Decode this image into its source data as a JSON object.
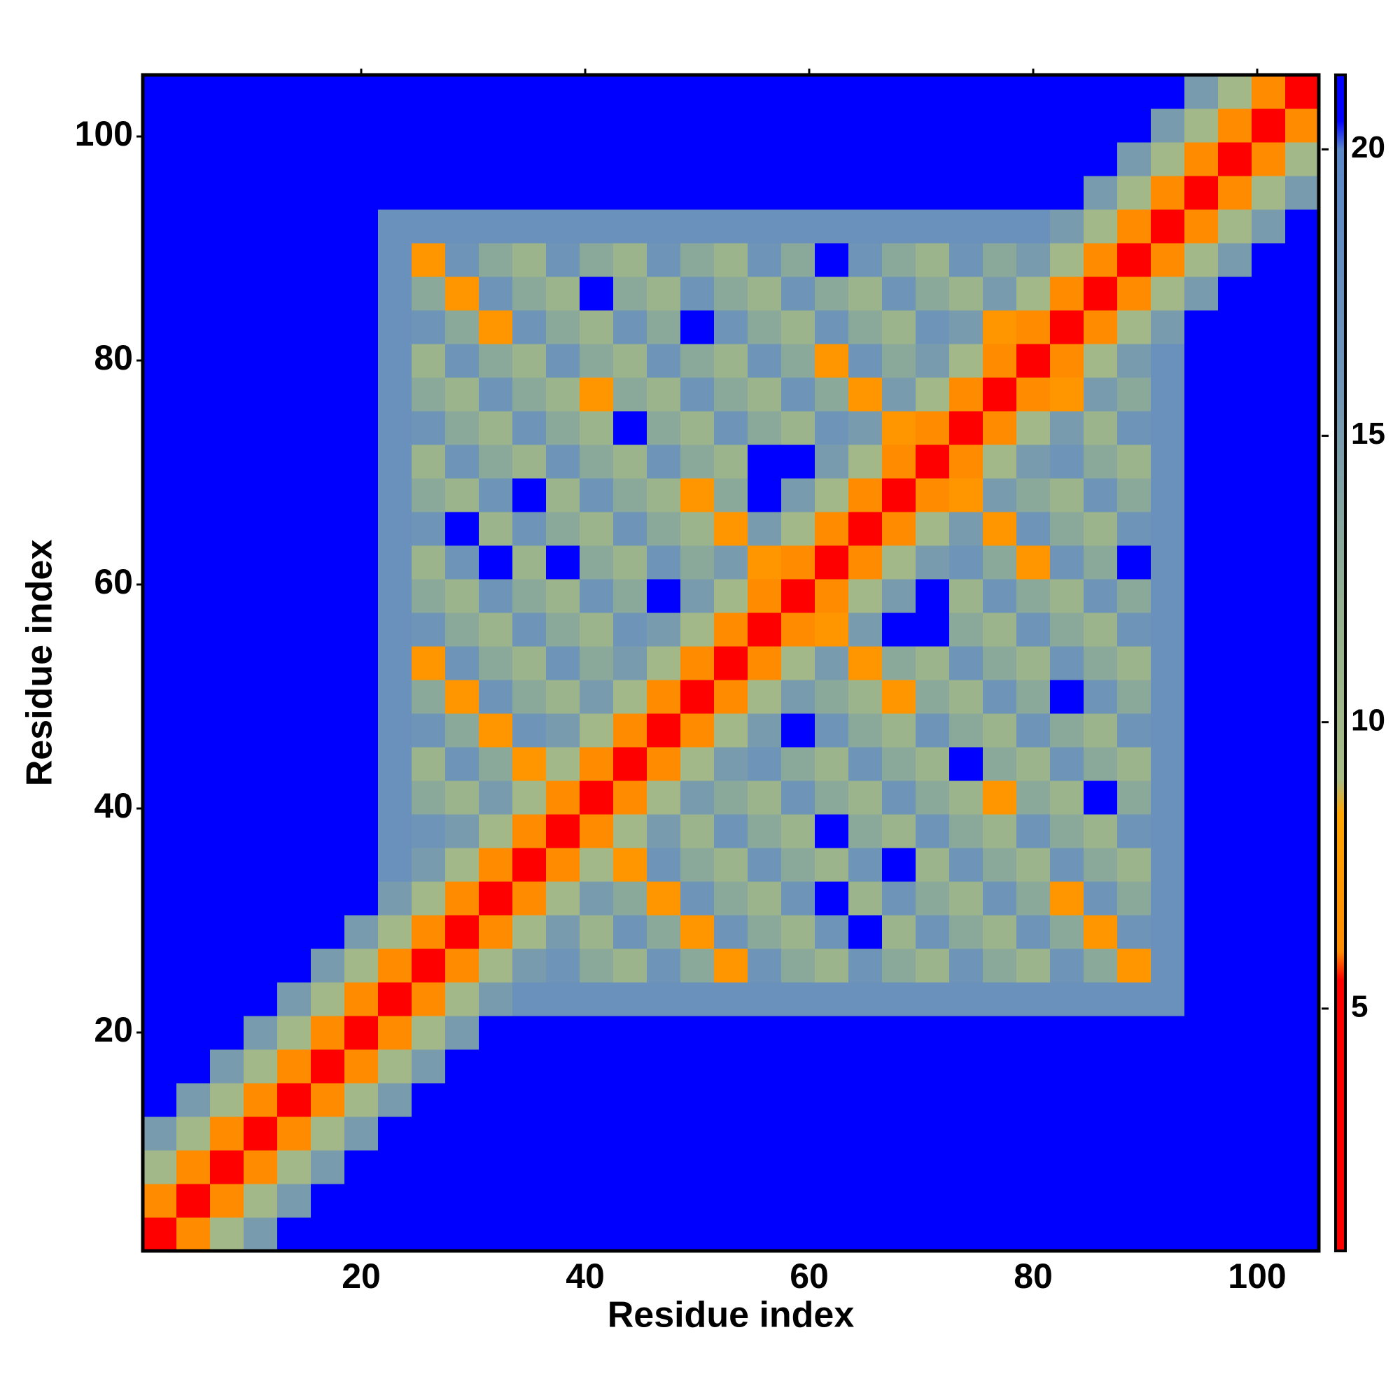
{
  "chart_data": {
    "type": "heatmap",
    "xlabel": "Residue index",
    "ylabel": "Residue index",
    "x": [
      2,
      5,
      8,
      11,
      14,
      17,
      20,
      23,
      26,
      29,
      32,
      35,
      38,
      41,
      44,
      47,
      50,
      53,
      56,
      59,
      62,
      65,
      68,
      71,
      74,
      77,
      80,
      83,
      86,
      89,
      92,
      95,
      98,
      101,
      104
    ],
    "y": [
      2,
      5,
      8,
      11,
      14,
      17,
      20,
      23,
      26,
      29,
      32,
      35,
      38,
      41,
      44,
      47,
      50,
      53,
      56,
      59,
      62,
      65,
      68,
      71,
      74,
      77,
      80,
      83,
      86,
      89,
      92,
      95,
      98,
      101,
      104
    ],
    "xlim": [
      0.5,
      105.5
    ],
    "ylim": [
      0.5,
      105.5
    ],
    "xticks": [
      20,
      40,
      60,
      80,
      100
    ],
    "yticks": [
      20,
      40,
      60,
      80,
      100
    ],
    "colorscale": [
      [
        0.77,
        "#ff0000"
      ],
      [
        5.5,
        "#ff0000"
      ],
      [
        6,
        "#ff8c00"
      ],
      [
        8.4,
        "#ffa500"
      ],
      [
        9,
        "#a8bc84"
      ],
      [
        12,
        "#95b090"
      ],
      [
        16,
        "#6e94b8"
      ],
      [
        20,
        "#5a88c8"
      ],
      [
        20.5,
        "#0000ff"
      ],
      [
        21.3,
        "#0000ff"
      ]
    ],
    "colorbar": {
      "lim": [
        0.77,
        21.3
      ],
      "ticks": [
        5,
        10,
        15,
        20
      ]
    },
    "z": [
      [
        2,
        6,
        10,
        15,
        21,
        21,
        21,
        21,
        21,
        21,
        21,
        21,
        21,
        21,
        21,
        21,
        21,
        21,
        21,
        21,
        21,
        21,
        21,
        21,
        21,
        21,
        21,
        21,
        21,
        21,
        21,
        21,
        21,
        21,
        21
      ],
      [
        6,
        2,
        6,
        10,
        15,
        21,
        21,
        21,
        21,
        21,
        21,
        21,
        21,
        21,
        21,
        21,
        21,
        21,
        21,
        21,
        21,
        21,
        21,
        21,
        21,
        21,
        21,
        21,
        21,
        21,
        21,
        21,
        21,
        21,
        21
      ],
      [
        10,
        6,
        2,
        6,
        10,
        15,
        21,
        21,
        21,
        21,
        21,
        21,
        21,
        21,
        21,
        21,
        21,
        21,
        21,
        21,
        21,
        21,
        21,
        21,
        21,
        21,
        21,
        21,
        21,
        21,
        21,
        21,
        21,
        21,
        21
      ],
      [
        15,
        10,
        6,
        2,
        6,
        10,
        15,
        21,
        21,
        21,
        21,
        21,
        21,
        21,
        21,
        21,
        21,
        21,
        21,
        21,
        21,
        21,
        21,
        21,
        21,
        21,
        21,
        21,
        21,
        21,
        21,
        21,
        21,
        21,
        21
      ],
      [
        21,
        15,
        10,
        6,
        2,
        6,
        10,
        15,
        21,
        21,
        21,
        21,
        21,
        21,
        21,
        21,
        21,
        21,
        21,
        21,
        21,
        21,
        21,
        21,
        21,
        21,
        21,
        21,
        21,
        21,
        21,
        21,
        21,
        21,
        21
      ],
      [
        21,
        21,
        15,
        10,
        6,
        2,
        6,
        10,
        15,
        21,
        21,
        21,
        21,
        21,
        21,
        21,
        21,
        21,
        21,
        21,
        21,
        21,
        21,
        21,
        21,
        21,
        21,
        21,
        21,
        21,
        21,
        21,
        21,
        21,
        21
      ],
      [
        21,
        21,
        21,
        15,
        10,
        6,
        2,
        6,
        10,
        15,
        21,
        21,
        21,
        21,
        21,
        21,
        21,
        21,
        21,
        21,
        21,
        21,
        21,
        21,
        21,
        21,
        21,
        21,
        21,
        21,
        21,
        21,
        21,
        21,
        21
      ],
      [
        21,
        21,
        21,
        21,
        15,
        10,
        6,
        2,
        6,
        10,
        15,
        17,
        17,
        17,
        17,
        17,
        17,
        17,
        17,
        17,
        17,
        17,
        17,
        17,
        17,
        17,
        17,
        17,
        17,
        17,
        17,
        21,
        21,
        21,
        21
      ],
      [
        21,
        21,
        21,
        21,
        21,
        15,
        10,
        6,
        2,
        6,
        10,
        15,
        16,
        13,
        11,
        16,
        13,
        7,
        16,
        13,
        11,
        16,
        13,
        11,
        16,
        13,
        11,
        16,
        13,
        7,
        17,
        21,
        21,
        21,
        21
      ],
      [
        21,
        21,
        21,
        21,
        21,
        21,
        15,
        10,
        6,
        2,
        6,
        10,
        15,
        11,
        16,
        13,
        7,
        16,
        13,
        11,
        16,
        21,
        11,
        16,
        13,
        11,
        16,
        13,
        7,
        16,
        17,
        21,
        21,
        21,
        21
      ],
      [
        21,
        21,
        21,
        21,
        21,
        21,
        21,
        15,
        10,
        6,
        2,
        6,
        10,
        15,
        13,
        7,
        16,
        13,
        11,
        16,
        21,
        11,
        16,
        13,
        11,
        16,
        13,
        7,
        16,
        13,
        17,
        21,
        21,
        21,
        21
      ],
      [
        21,
        21,
        21,
        21,
        21,
        21,
        21,
        17,
        15,
        10,
        6,
        2,
        6,
        10,
        7,
        16,
        13,
        11,
        16,
        13,
        11,
        16,
        21,
        11,
        16,
        13,
        11,
        16,
        13,
        11,
        17,
        21,
        21,
        21,
        21
      ],
      [
        21,
        21,
        21,
        21,
        21,
        21,
        21,
        17,
        16,
        15,
        10,
        6,
        2,
        6,
        10,
        15,
        11,
        16,
        13,
        11,
        21,
        13,
        11,
        16,
        13,
        11,
        16,
        13,
        11,
        16,
        17,
        21,
        21,
        21,
        21
      ],
      [
        21,
        21,
        21,
        21,
        21,
        21,
        21,
        17,
        13,
        11,
        15,
        10,
        6,
        2,
        6,
        10,
        15,
        13,
        11,
        16,
        13,
        11,
        16,
        13,
        11,
        7,
        13,
        11,
        21,
        13,
        17,
        21,
        21,
        21,
        21
      ],
      [
        21,
        21,
        21,
        21,
        21,
        21,
        21,
        17,
        11,
        16,
        13,
        7,
        10,
        6,
        2,
        6,
        10,
        15,
        16,
        13,
        11,
        16,
        13,
        11,
        21,
        13,
        11,
        16,
        13,
        11,
        17,
        21,
        21,
        21,
        21
      ],
      [
        21,
        21,
        21,
        21,
        21,
        21,
        21,
        17,
        16,
        13,
        7,
        16,
        15,
        10,
        6,
        2,
        6,
        10,
        15,
        21,
        16,
        13,
        11,
        16,
        13,
        11,
        16,
        13,
        11,
        16,
        17,
        21,
        21,
        21,
        21
      ],
      [
        21,
        21,
        21,
        21,
        21,
        21,
        21,
        17,
        13,
        7,
        16,
        13,
        11,
        15,
        10,
        6,
        2,
        6,
        10,
        15,
        13,
        11,
        7,
        13,
        11,
        16,
        13,
        21,
        16,
        13,
        17,
        21,
        21,
        21,
        21
      ],
      [
        21,
        21,
        21,
        21,
        21,
        21,
        21,
        17,
        7,
        16,
        13,
        11,
        16,
        13,
        15,
        10,
        6,
        2,
        6,
        10,
        15,
        7,
        13,
        11,
        16,
        13,
        11,
        16,
        13,
        11,
        17,
        21,
        21,
        21,
        21
      ],
      [
        21,
        21,
        21,
        21,
        21,
        21,
        21,
        17,
        16,
        13,
        11,
        16,
        13,
        11,
        16,
        15,
        10,
        6,
        2,
        6,
        7,
        15,
        21,
        21,
        13,
        11,
        16,
        13,
        11,
        16,
        17,
        21,
        21,
        21,
        21
      ],
      [
        21,
        21,
        21,
        21,
        21,
        21,
        21,
        17,
        13,
        11,
        16,
        13,
        11,
        16,
        13,
        21,
        15,
        10,
        6,
        2,
        6,
        10,
        15,
        21,
        11,
        16,
        13,
        11,
        16,
        13,
        17,
        21,
        21,
        21,
        21
      ],
      [
        21,
        21,
        21,
        21,
        21,
        21,
        21,
        17,
        11,
        16,
        21,
        11,
        21,
        13,
        11,
        16,
        13,
        15,
        7,
        6,
        2,
        6,
        10,
        15,
        16,
        13,
        7,
        16,
        13,
        21,
        17,
        21,
        21,
        21,
        21
      ],
      [
        21,
        21,
        21,
        21,
        21,
        21,
        21,
        17,
        16,
        21,
        11,
        16,
        13,
        11,
        16,
        13,
        11,
        7,
        15,
        10,
        6,
        2,
        6,
        10,
        15,
        7,
        16,
        13,
        11,
        16,
        17,
        21,
        21,
        21,
        21
      ],
      [
        21,
        21,
        21,
        21,
        21,
        21,
        21,
        17,
        13,
        11,
        16,
        21,
        11,
        16,
        13,
        11,
        7,
        13,
        21,
        15,
        10,
        6,
        2,
        6,
        7,
        15,
        13,
        11,
        16,
        13,
        17,
        21,
        21,
        21,
        21
      ],
      [
        21,
        21,
        21,
        21,
        21,
        21,
        21,
        17,
        11,
        16,
        13,
        11,
        16,
        13,
        11,
        16,
        13,
        11,
        21,
        21,
        15,
        10,
        6,
        2,
        6,
        10,
        15,
        16,
        13,
        11,
        17,
        21,
        21,
        21,
        21
      ],
      [
        21,
        21,
        21,
        21,
        21,
        21,
        21,
        17,
        16,
        13,
        11,
        16,
        13,
        11,
        21,
        13,
        11,
        16,
        13,
        11,
        16,
        15,
        7,
        6,
        2,
        6,
        10,
        15,
        11,
        16,
        17,
        21,
        21,
        21,
        21
      ],
      [
        21,
        21,
        21,
        21,
        21,
        21,
        21,
        17,
        13,
        11,
        16,
        13,
        11,
        7,
        13,
        11,
        16,
        13,
        11,
        16,
        13,
        7,
        15,
        10,
        6,
        2,
        6,
        7,
        15,
        13,
        17,
        21,
        21,
        21,
        21
      ],
      [
        21,
        21,
        21,
        21,
        21,
        21,
        21,
        17,
        11,
        16,
        13,
        11,
        16,
        13,
        11,
        16,
        13,
        11,
        16,
        13,
        7,
        16,
        13,
        15,
        10,
        6,
        2,
        6,
        10,
        15,
        17,
        21,
        21,
        21,
        21
      ],
      [
        21,
        21,
        21,
        21,
        21,
        21,
        21,
        17,
        16,
        13,
        7,
        16,
        13,
        11,
        16,
        13,
        21,
        16,
        13,
        11,
        16,
        13,
        11,
        16,
        15,
        7,
        6,
        2,
        6,
        10,
        15,
        21,
        21,
        21,
        21
      ],
      [
        21,
        21,
        21,
        21,
        21,
        21,
        21,
        17,
        13,
        7,
        16,
        13,
        11,
        21,
        13,
        11,
        16,
        13,
        11,
        16,
        13,
        11,
        16,
        13,
        11,
        15,
        10,
        6,
        2,
        6,
        10,
        15,
        21,
        21,
        21
      ],
      [
        21,
        21,
        21,
        21,
        21,
        21,
        21,
        17,
        7,
        16,
        13,
        11,
        16,
        13,
        11,
        16,
        13,
        11,
        16,
        13,
        21,
        16,
        13,
        11,
        16,
        13,
        15,
        10,
        6,
        2,
        6,
        10,
        15,
        21,
        21
      ],
      [
        21,
        21,
        21,
        21,
        21,
        21,
        21,
        17,
        17,
        17,
        17,
        17,
        17,
        17,
        17,
        17,
        17,
        17,
        17,
        17,
        17,
        17,
        17,
        17,
        17,
        17,
        17,
        15,
        10,
        6,
        2,
        6,
        10,
        15,
        21
      ],
      [
        21,
        21,
        21,
        21,
        21,
        21,
        21,
        21,
        21,
        21,
        21,
        21,
        21,
        21,
        21,
        21,
        21,
        21,
        21,
        21,
        21,
        21,
        21,
        21,
        21,
        21,
        21,
        21,
        15,
        10,
        6,
        2,
        6,
        10,
        15
      ],
      [
        21,
        21,
        21,
        21,
        21,
        21,
        21,
        21,
        21,
        21,
        21,
        21,
        21,
        21,
        21,
        21,
        21,
        21,
        21,
        21,
        21,
        21,
        21,
        21,
        21,
        21,
        21,
        21,
        21,
        15,
        10,
        6,
        2,
        6,
        10
      ],
      [
        21,
        21,
        21,
        21,
        21,
        21,
        21,
        21,
        21,
        21,
        21,
        21,
        21,
        21,
        21,
        21,
        21,
        21,
        21,
        21,
        21,
        21,
        21,
        21,
        21,
        21,
        21,
        21,
        21,
        21,
        15,
        10,
        6,
        2,
        6
      ],
      [
        21,
        21,
        21,
        21,
        21,
        21,
        21,
        21,
        21,
        21,
        21,
        21,
        21,
        21,
        21,
        21,
        21,
        21,
        21,
        21,
        21,
        21,
        21,
        21,
        21,
        21,
        21,
        21,
        21,
        21,
        21,
        15,
        10,
        6,
        2
      ]
    ]
  }
}
